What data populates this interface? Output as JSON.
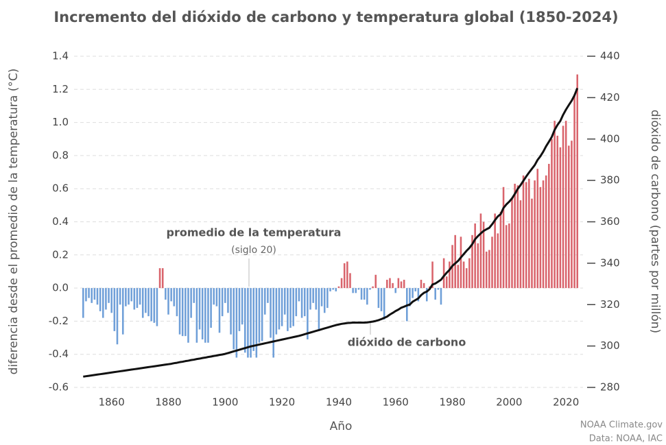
{
  "chart_data": {
    "type": "bar",
    "title": "Incremento del dióxido de carbono y temperatura global (1850-2024)",
    "x_label": "Año",
    "y_label": "diferencia desde el promedio de la temperatura (°C)",
    "y2_label": "dióxido de carbono (partes por millón)",
    "annotations": [
      "promedio de la temperatura",
      "(siglo 20)",
      "dióxido de carbono"
    ],
    "source": [
      "NOAA Climate.gov",
      "Data: NOAA, IAC"
    ],
    "x": [
      1850,
      1851,
      1852,
      1853,
      1854,
      1855,
      1856,
      1857,
      1858,
      1859,
      1860,
      1861,
      1862,
      1863,
      1864,
      1865,
      1866,
      1867,
      1868,
      1869,
      1870,
      1871,
      1872,
      1873,
      1874,
      1875,
      1876,
      1877,
      1878,
      1879,
      1880,
      1881,
      1882,
      1883,
      1884,
      1885,
      1886,
      1887,
      1888,
      1889,
      1890,
      1891,
      1892,
      1893,
      1894,
      1895,
      1896,
      1897,
      1898,
      1899,
      1900,
      1901,
      1902,
      1903,
      1904,
      1905,
      1906,
      1907,
      1908,
      1909,
      1910,
      1911,
      1912,
      1913,
      1914,
      1915,
      1916,
      1917,
      1918,
      1919,
      1920,
      1921,
      1922,
      1923,
      1924,
      1925,
      1926,
      1927,
      1928,
      1929,
      1930,
      1931,
      1932,
      1933,
      1934,
      1935,
      1936,
      1937,
      1938,
      1939,
      1940,
      1941,
      1942,
      1943,
      1944,
      1945,
      1946,
      1947,
      1948,
      1949,
      1950,
      1951,
      1952,
      1953,
      1954,
      1955,
      1956,
      1957,
      1958,
      1959,
      1960,
      1961,
      1962,
      1963,
      1964,
      1965,
      1966,
      1967,
      1968,
      1969,
      1970,
      1971,
      1972,
      1973,
      1974,
      1975,
      1976,
      1977,
      1978,
      1979,
      1980,
      1981,
      1982,
      1983,
      1984,
      1985,
      1986,
      1987,
      1988,
      1989,
      1990,
      1991,
      1992,
      1993,
      1994,
      1995,
      1996,
      1997,
      1998,
      1999,
      2000,
      2001,
      2002,
      2003,
      2004,
      2005,
      2006,
      2007,
      2008,
      2009,
      2010,
      2011,
      2012,
      2013,
      2014,
      2015,
      2016,
      2017,
      2018,
      2019,
      2020,
      2021,
      2022,
      2023,
      2024
    ],
    "series": [
      {
        "type": "bar",
        "positive_color": "#d9646c",
        "negative_color": "#6f9fd8",
        "values": [
          -0.18,
          -0.08,
          -0.06,
          -0.09,
          -0.07,
          -0.1,
          -0.14,
          -0.18,
          -0.13,
          -0.09,
          -0.15,
          -0.26,
          -0.34,
          -0.1,
          -0.28,
          -0.11,
          -0.1,
          -0.08,
          -0.13,
          -0.12,
          -0.1,
          -0.18,
          -0.15,
          -0.17,
          -0.2,
          -0.21,
          -0.23,
          0.12,
          0.12,
          -0.07,
          -0.16,
          -0.08,
          -0.11,
          -0.17,
          -0.28,
          -0.29,
          -0.29,
          -0.33,
          -0.18,
          -0.09,
          -0.33,
          -0.25,
          -0.31,
          -0.33,
          -0.33,
          -0.24,
          -0.1,
          -0.11,
          -0.27,
          -0.17,
          -0.09,
          -0.15,
          -0.28,
          -0.37,
          -0.42,
          -0.26,
          -0.22,
          -0.39,
          -0.42,
          -0.42,
          -0.38,
          -0.42,
          -0.33,
          -0.32,
          -0.16,
          -0.09,
          -0.3,
          -0.42,
          -0.28,
          -0.25,
          -0.23,
          -0.16,
          -0.26,
          -0.24,
          -0.23,
          -0.17,
          -0.08,
          -0.18,
          -0.17,
          -0.31,
          -0.13,
          -0.09,
          -0.13,
          -0.26,
          -0.11,
          -0.15,
          -0.12,
          -0.02,
          -0.01,
          -0.02,
          0.01,
          0.06,
          0.15,
          0.16,
          0.09,
          -0.03,
          -0.03,
          -0.01,
          -0.07,
          -0.07,
          -0.1,
          -0.01,
          0.01,
          0.08,
          -0.12,
          -0.14,
          -0.19,
          0.05,
          0.06,
          0.03,
          -0.03,
          0.06,
          0.04,
          0.05,
          -0.2,
          -0.11,
          -0.06,
          -0.02,
          -0.08,
          0.05,
          0.03,
          -0.08,
          0.01,
          0.16,
          -0.07,
          -0.01,
          -0.1,
          0.18,
          0.07,
          0.16,
          0.26,
          0.32,
          0.14,
          0.31,
          0.16,
          0.12,
          0.18,
          0.32,
          0.39,
          0.27,
          0.45,
          0.4,
          0.22,
          0.23,
          0.31,
          0.45,
          0.33,
          0.46,
          0.61,
          0.38,
          0.39,
          0.54,
          0.63,
          0.62,
          0.53,
          0.68,
          0.64,
          0.66,
          0.54,
          0.65,
          0.72,
          0.61,
          0.65,
          0.68,
          0.75,
          0.9,
          1.01,
          0.92,
          0.85,
          0.98,
          1.01,
          0.86,
          0.89,
          1.17,
          1.29
        ]
      },
      {
        "type": "line",
        "axis": "y2",
        "color": "#111111",
        "values": [
          285.2,
          285.4,
          285.6,
          285.8,
          286.0,
          286.2,
          286.4,
          286.6,
          286.8,
          287.0,
          287.2,
          287.4,
          287.6,
          287.8,
          288.0,
          288.2,
          288.4,
          288.6,
          288.8,
          289.0,
          289.2,
          289.4,
          289.6,
          289.8,
          290.0,
          290.2,
          290.4,
          290.6,
          290.8,
          291.0,
          291.2,
          291.4,
          291.7,
          291.9,
          292.2,
          292.4,
          292.7,
          292.9,
          293.2,
          293.4,
          293.7,
          293.9,
          294.2,
          294.4,
          294.7,
          294.9,
          295.2,
          295.4,
          295.7,
          295.9,
          296.2,
          296.6,
          297.0,
          297.4,
          297.8,
          298.2,
          298.6,
          299.0,
          299.4,
          299.8,
          300.1,
          300.4,
          300.7,
          301.0,
          301.3,
          301.6,
          301.9,
          302.2,
          302.5,
          302.8,
          303.1,
          303.4,
          303.7,
          304.0,
          304.3,
          304.6,
          304.9,
          305.3,
          305.7,
          306.1,
          306.5,
          306.9,
          307.3,
          307.7,
          308.1,
          308.5,
          308.9,
          309.3,
          309.7,
          310.1,
          310.4,
          310.7,
          310.9,
          311.1,
          311.2,
          311.3,
          311.3,
          311.3,
          311.3,
          311.3,
          311.4,
          311.6,
          311.8,
          312.1,
          312.5,
          313.0,
          313.6,
          314.2,
          315.2,
          316.0,
          316.9,
          317.6,
          318.5,
          319.0,
          319.6,
          320.0,
          321.4,
          322.2,
          323.0,
          324.6,
          325.7,
          326.3,
          327.5,
          329.7,
          330.2,
          331.1,
          332.0,
          333.8,
          335.4,
          336.8,
          338.7,
          339.9,
          341.1,
          342.8,
          344.4,
          346.0,
          347.4,
          349.2,
          351.6,
          353.1,
          354.4,
          355.6,
          356.4,
          357.1,
          358.8,
          360.8,
          362.6,
          363.7,
          366.7,
          368.4,
          369.7,
          371.3,
          373.5,
          375.9,
          377.7,
          379.8,
          381.9,
          383.8,
          385.6,
          387.4,
          389.9,
          391.7,
          393.9,
          396.5,
          398.7,
          401.0,
          404.4,
          406.8,
          408.7,
          411.7,
          414.2,
          416.4,
          418.5,
          421.1,
          424.6
        ]
      }
    ],
    "xlim": [
      1848,
      2026
    ],
    "xticks": [
      1860,
      1880,
      1900,
      1920,
      1940,
      1960,
      1980,
      2000,
      2020
    ],
    "ylim": [
      -0.6,
      1.4
    ],
    "yticks": [
      -0.6,
      -0.4,
      -0.2,
      {
        "value": 0,
        "label": "0.0"
      },
      0.2,
      0.4,
      0.6,
      0.8,
      {
        "value": 1,
        "label": "1.0"
      },
      1.2,
      1.4
    ],
    "y2lim": [
      280,
      440
    ],
    "y2ticks": [
      280,
      300,
      320,
      340,
      360,
      380,
      400,
      420,
      440
    ],
    "grid": true
  }
}
